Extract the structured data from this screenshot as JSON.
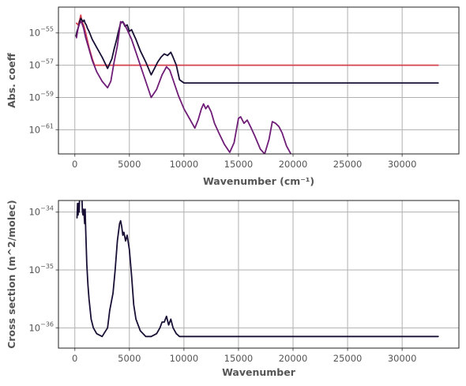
{
  "chart_data": [
    {
      "type": "line",
      "title": "",
      "xlabel": "Wavenumber (cm⁻¹)",
      "ylabel": "Abs. coeff",
      "xlim": [
        -1500,
        35200
      ],
      "ylim_log10": [
        -62.5,
        -53.4
      ],
      "yscale": "log",
      "grid": true,
      "x_ticks": [
        0,
        5000,
        10000,
        15000,
        20000,
        25000,
        30000
      ],
      "x_tick_labels": [
        "0",
        "5000",
        "10000",
        "15000",
        "20000",
        "25000",
        "30000"
      ],
      "y_ticks_log10": [
        -55,
        -57,
        -59,
        -61
      ],
      "y_tick_labels": [
        {
          "base": "10",
          "exp": "−55"
        },
        {
          "base": "10",
          "exp": "−57"
        },
        {
          "base": "10",
          "exp": "−59"
        },
        {
          "base": "10",
          "exp": "−61"
        }
      ],
      "series": [
        {
          "color": "#d6414f",
          "x": [
            150,
            300,
            450,
            550,
            650,
            800,
            1000,
            1300,
            1600,
            1800,
            2000,
            5000,
            10000,
            20000,
            33300
          ],
          "log10_y": [
            -54.4,
            -54.5,
            -54.2,
            -53.9,
            -54.3,
            -54.5,
            -55.0,
            -55.9,
            -56.6,
            -57.0,
            -57.0,
            -57.0,
            -57.0,
            -57.0,
            -57.0
          ]
        },
        {
          "color": "#1a1035",
          "x": [
            100,
            200,
            300,
            450,
            550,
            650,
            750,
            850,
            950,
            1050,
            1150,
            1300,
            1600,
            2000,
            2500,
            3000,
            3400,
            3600,
            3800,
            4000,
            4200,
            4400,
            4600,
            4800,
            5000,
            5200,
            5400,
            5600,
            6000,
            6500,
            7000,
            7300,
            7600,
            7900,
            8200,
            8500,
            8800,
            9000,
            9300,
            9600,
            10000,
            15000,
            20000,
            25000,
            33300
          ],
          "log10_y": [
            -55.2,
            -54.9,
            -54.7,
            -54.3,
            -54.1,
            -54.2,
            -54.3,
            -54.2,
            -54.4,
            -54.5,
            -54.7,
            -54.9,
            -55.4,
            -55.9,
            -56.5,
            -57.2,
            -56.6,
            -56.0,
            -55.5,
            -54.9,
            -54.4,
            -54.3,
            -54.6,
            -54.5,
            -54.9,
            -54.8,
            -55.1,
            -55.4,
            -56.1,
            -56.8,
            -57.6,
            -57.2,
            -56.8,
            -56.5,
            -56.3,
            -56.4,
            -56.2,
            -56.5,
            -57.0,
            -57.9,
            -58.1,
            -58.1,
            -58.1,
            -58.1,
            -58.1
          ]
        },
        {
          "color": "#6f1d77",
          "x": [
            150,
            300,
            450,
            600,
            800,
            1000,
            1300,
            1600,
            2000,
            2500,
            3000,
            3300,
            3600,
            3900,
            4200,
            4500,
            4800,
            5200,
            5600,
            6000,
            6500,
            7000,
            7500,
            8000,
            8400,
            8700,
            9000,
            9500,
            10000,
            10500,
            11000,
            11300,
            11600,
            11800,
            12000,
            12200,
            12500,
            12800,
            13200,
            13700,
            14200,
            14600,
            15000,
            15200,
            15500,
            15800,
            16100,
            16500,
            17000,
            17400,
            17800,
            18100,
            18400,
            18700,
            19000,
            19400,
            19800,
            20000,
            25000,
            33300
          ],
          "log10_y": [
            -55.3,
            -54.7,
            -54.4,
            -54.3,
            -54.7,
            -55.3,
            -56.0,
            -56.7,
            -57.4,
            -58.0,
            -58.4,
            -58.0,
            -56.8,
            -55.8,
            -54.3,
            -54.4,
            -54.8,
            -55.4,
            -56.2,
            -57.0,
            -58.0,
            -59.0,
            -58.5,
            -57.6,
            -57.1,
            -57.3,
            -57.9,
            -58.9,
            -59.7,
            -60.3,
            -60.9,
            -60.4,
            -59.7,
            -59.4,
            -59.7,
            -59.5,
            -59.9,
            -60.6,
            -61.2,
            -61.9,
            -62.4,
            -61.8,
            -60.3,
            -60.2,
            -60.6,
            -60.4,
            -60.8,
            -61.4,
            -62.2,
            -62.5,
            -61.6,
            -60.5,
            -60.6,
            -60.8,
            -61.2,
            -62.0,
            -62.5,
            -62.8,
            -62.8,
            -62.8
          ]
        }
      ]
    },
    {
      "type": "line",
      "title": "",
      "xlabel": "Wavenumber",
      "ylabel": "Cross section (m^2/molec)",
      "xlim": [
        -1500,
        35200
      ],
      "ylim_log10": [
        -36.35,
        -33.8
      ],
      "yscale": "log",
      "grid": true,
      "x_ticks": [
        0,
        5000,
        10000,
        15000,
        20000,
        25000,
        30000
      ],
      "x_tick_labels": [
        "0",
        "5000",
        "10000",
        "15000",
        "20000",
        "25000",
        "30000"
      ],
      "y_ticks_log10": [
        -34,
        -35,
        -36
      ],
      "y_tick_labels": [
        {
          "base": "10",
          "exp": "−34"
        },
        {
          "base": "10",
          "exp": "−35"
        },
        {
          "base": "10",
          "exp": "−36"
        }
      ],
      "series": [
        {
          "color": "#1a1035",
          "x": [
            200,
            250,
            300,
            350,
            400,
            450,
            500,
            550,
            600,
            650,
            700,
            750,
            800,
            850,
            900,
            950,
            1000,
            1050,
            1100,
            1200,
            1300,
            1500,
            1700,
            2000,
            2500,
            3000,
            3200,
            3500,
            3700,
            3900,
            4100,
            4200,
            4300,
            4400,
            4500,
            4650,
            4800,
            5000,
            5200,
            5400,
            5600,
            6000,
            6500,
            7000,
            7500,
            7800,
            8000,
            8200,
            8400,
            8600,
            8800,
            9000,
            9300,
            9600,
            10000,
            15000,
            20000,
            25000,
            33300
          ],
          "log10_y": [
            -34.1,
            -33.85,
            -34.05,
            -33.85,
            -34.0,
            -33.7,
            -33.3,
            -33.1,
            -33.4,
            -33.75,
            -34.0,
            -34.05,
            -33.95,
            -34.05,
            -34.2,
            -33.95,
            -34.3,
            -34.6,
            -34.9,
            -35.25,
            -35.5,
            -35.85,
            -36.0,
            -36.1,
            -36.15,
            -36.0,
            -35.7,
            -35.4,
            -35.0,
            -34.5,
            -34.2,
            -34.15,
            -34.25,
            -34.4,
            -34.35,
            -34.5,
            -34.4,
            -34.65,
            -35.1,
            -35.6,
            -35.85,
            -36.05,
            -36.15,
            -36.15,
            -36.1,
            -36.0,
            -35.9,
            -35.9,
            -35.8,
            -35.95,
            -35.85,
            -36.0,
            -36.1,
            -36.15,
            -36.15,
            -36.15,
            -36.15,
            -36.15,
            -36.15
          ]
        }
      ]
    }
  ]
}
